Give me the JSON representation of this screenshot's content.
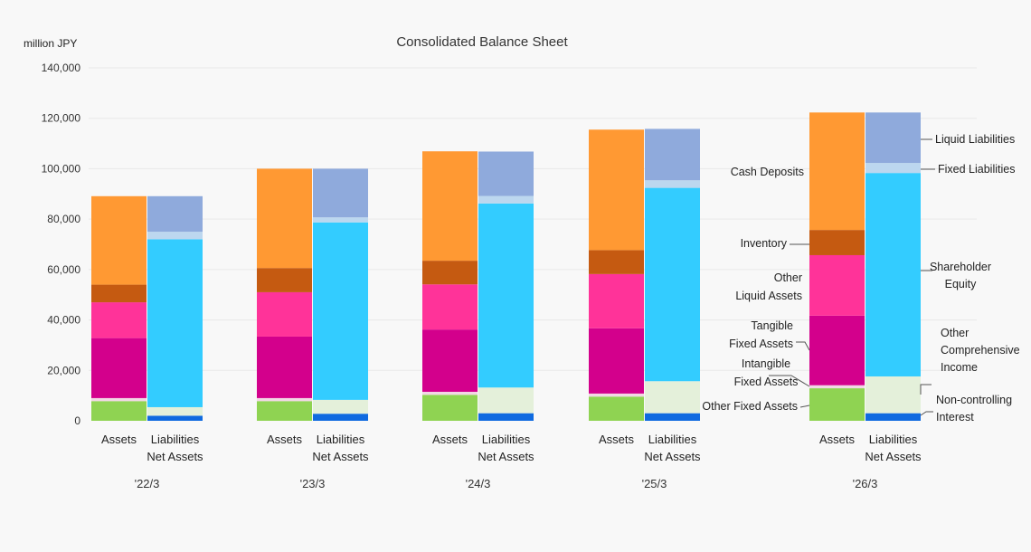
{
  "chart_data": {
    "type": "bar",
    "stacked": true,
    "title": "Consolidated Balance Sheet",
    "unit_label": "million JPY",
    "ylim": [
      0,
      140000
    ],
    "yticks": [
      0,
      20000,
      40000,
      60000,
      80000,
      100000,
      120000,
      140000
    ],
    "ytick_labels": [
      "0",
      "20,000",
      "40,000",
      "60,000",
      "80,000",
      "100,000",
      "120,000",
      "140,000"
    ],
    "grid": true,
    "categories": [
      "'22/3",
      "'23/3",
      "'24/3",
      "'25/3",
      "'26/3"
    ],
    "bars": [
      {
        "label": "Assets",
        "series": [
          {
            "name": "Other Fixed Assets",
            "color": "#8fd352",
            "values": [
              7800,
              7800,
              10300,
              9600,
              12900
            ]
          },
          {
            "name": "Intangible Fixed Assets",
            "color": "#f2d7e4",
            "values": [
              1200,
              1200,
              1200,
              1200,
              1200
            ]
          },
          {
            "name": "Tangible Fixed Assets",
            "color": "#d3008c",
            "values": [
              23800,
              24400,
              24700,
              25900,
              27600
            ]
          },
          {
            "name": "Other Liquid Assets",
            "color": "#ff3399",
            "values": [
              14200,
              17600,
              17900,
              21500,
              24000
            ]
          },
          {
            "name": "Inventory",
            "color": "#c55a11",
            "values": [
              7000,
              9600,
              9400,
              9500,
              10000
            ]
          },
          {
            "name": "Cash Deposits",
            "color": "#ff9933",
            "values": [
              35100,
              39400,
              43400,
              47800,
              46600
            ]
          }
        ]
      },
      {
        "label": "Liabilities Net Assets",
        "label_lines": [
          "Liabilities",
          "Net Assets"
        ],
        "series": [
          {
            "name": "Non-controlling Interest",
            "color": "#0f6ae0",
            "values": [
              2000,
              2800,
              3000,
              3000,
              3000
            ]
          },
          {
            "name": "Other Comprehensive Income",
            "color": "#e4f0da",
            "values": [
              3400,
              5500,
              10200,
              12700,
              14600
            ]
          },
          {
            "name": "Shareholder Equity",
            "color": "#33ccff",
            "values": [
              66600,
              70400,
              73000,
              76700,
              80700
            ]
          },
          {
            "name": "Fixed Liabilities",
            "color": "#bcd7ef",
            "values": [
              3000,
              2000,
              3000,
              3000,
              4000
            ]
          },
          {
            "name": "Liquid Liabilities",
            "color": "#8faadc",
            "values": [
              14100,
              19300,
              17600,
              20400,
              20000
            ]
          }
        ]
      }
    ],
    "annotations_left": [
      {
        "series": "Cash Deposits",
        "lines": [
          "Cash Deposits"
        ]
      },
      {
        "series": "Inventory",
        "lines": [
          "Inventory"
        ]
      },
      {
        "series": "Other Liquid Assets",
        "lines": [
          "Other",
          "Liquid Assets"
        ]
      },
      {
        "series": "Tangible Fixed Assets",
        "lines": [
          "Tangible",
          "Fixed Assets"
        ]
      },
      {
        "series": "Intangible Fixed Assets",
        "lines": [
          "Intangible",
          "Fixed Assets"
        ]
      },
      {
        "series": "Other Fixed Assets",
        "lines": [
          "Other Fixed Assets"
        ]
      }
    ],
    "annotations_right": [
      {
        "series": "Liquid Liabilities",
        "lines": [
          "Liquid Liabilities"
        ]
      },
      {
        "series": "Fixed Liabilities",
        "lines": [
          "Fixed Liabilities"
        ]
      },
      {
        "series": "Shareholder Equity",
        "lines": [
          "Shareholder",
          "Equity"
        ]
      },
      {
        "series": "Other Comprehensive Income",
        "lines": [
          "Other",
          "Comprehensive",
          "Income"
        ]
      },
      {
        "series": "Non-controlling Interest",
        "lines": [
          "Non-controlling",
          "Interest"
        ]
      }
    ]
  }
}
